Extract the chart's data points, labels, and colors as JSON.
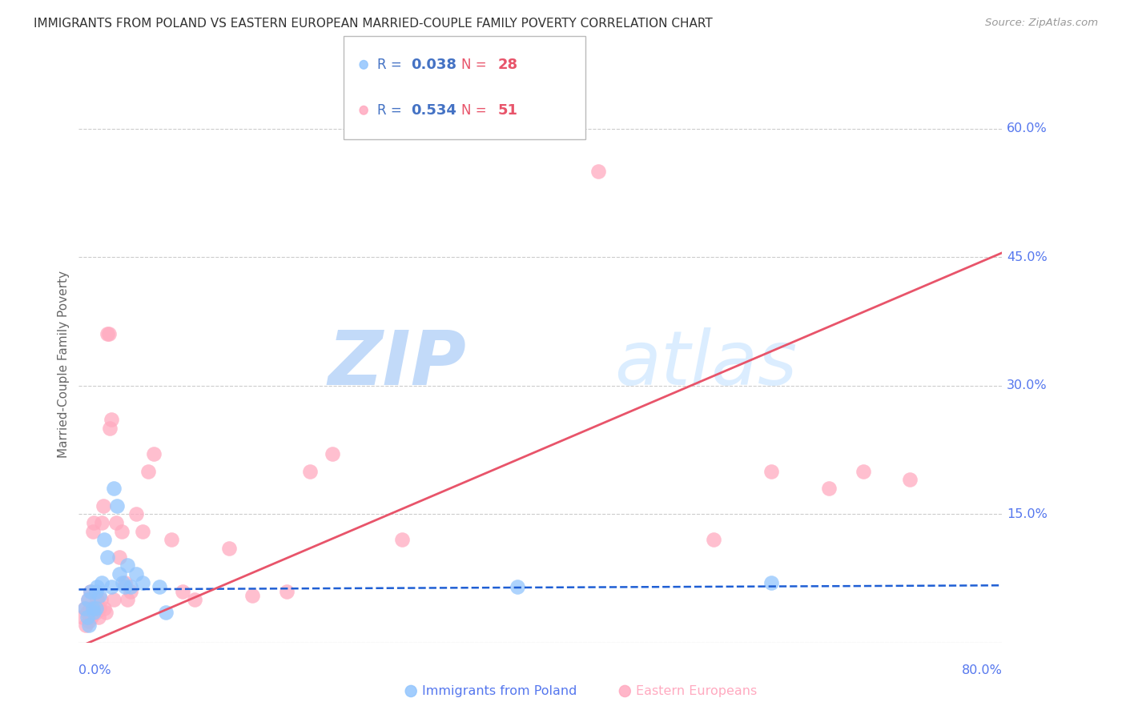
{
  "title": "IMMIGRANTS FROM POLAND VS EASTERN EUROPEAN MARRIED-COUPLE FAMILY POVERTY CORRELATION CHART",
  "source": "Source: ZipAtlas.com",
  "ylabel_label": "Married-Couple Family Poverty",
  "watermark_zip": "ZIP",
  "watermark_atlas": "atlas",
  "x_min": 0.0,
  "x_max": 0.8,
  "y_min": 0.0,
  "y_max": 0.65,
  "y_ticks": [
    0.0,
    0.15,
    0.3,
    0.45,
    0.6
  ],
  "y_tick_labels": [
    "",
    "15.0%",
    "30.0%",
    "45.0%",
    "60.0%"
  ],
  "poland_color": "#92C5FD",
  "eastern_color": "#FFAAC0",
  "poland_R": "0.038",
  "poland_N": "28",
  "eastern_R": "0.534",
  "eastern_N": "51",
  "legend_color_blue": "#4472C4",
  "legend_color_red": "#E8546A",
  "poland_scatter_x": [
    0.005,
    0.007,
    0.008,
    0.009,
    0.01,
    0.012,
    0.013,
    0.015,
    0.015,
    0.016,
    0.018,
    0.02,
    0.022,
    0.025,
    0.028,
    0.03,
    0.033,
    0.035,
    0.038,
    0.04,
    0.042,
    0.045,
    0.05,
    0.055,
    0.07,
    0.075,
    0.38,
    0.6
  ],
  "poland_scatter_y": [
    0.04,
    0.03,
    0.05,
    0.02,
    0.06,
    0.04,
    0.035,
    0.06,
    0.04,
    0.065,
    0.055,
    0.07,
    0.12,
    0.1,
    0.065,
    0.18,
    0.16,
    0.08,
    0.07,
    0.065,
    0.09,
    0.065,
    0.08,
    0.07,
    0.065,
    0.035,
    0.065,
    0.07
  ],
  "eastern_scatter_x": [
    0.003,
    0.005,
    0.006,
    0.007,
    0.008,
    0.009,
    0.01,
    0.01,
    0.011,
    0.012,
    0.013,
    0.014,
    0.015,
    0.016,
    0.017,
    0.018,
    0.019,
    0.02,
    0.021,
    0.022,
    0.023,
    0.025,
    0.026,
    0.027,
    0.028,
    0.03,
    0.032,
    0.035,
    0.037,
    0.04,
    0.042,
    0.045,
    0.05,
    0.055,
    0.06,
    0.065,
    0.08,
    0.09,
    0.1,
    0.13,
    0.15,
    0.18,
    0.2,
    0.22,
    0.28,
    0.45,
    0.55,
    0.6,
    0.65,
    0.68,
    0.72
  ],
  "eastern_scatter_y": [
    0.03,
    0.04,
    0.02,
    0.035,
    0.05,
    0.025,
    0.04,
    0.06,
    0.03,
    0.13,
    0.14,
    0.04,
    0.035,
    0.05,
    0.03,
    0.04,
    0.05,
    0.14,
    0.16,
    0.04,
    0.035,
    0.36,
    0.36,
    0.25,
    0.26,
    0.05,
    0.14,
    0.1,
    0.13,
    0.07,
    0.05,
    0.06,
    0.15,
    0.13,
    0.2,
    0.22,
    0.12,
    0.06,
    0.05,
    0.11,
    0.055,
    0.06,
    0.2,
    0.22,
    0.12,
    0.55,
    0.12,
    0.2,
    0.18,
    0.2,
    0.19
  ],
  "poland_line_color": "#1F5FD4",
  "eastern_line_color": "#E8546A",
  "poland_line_intercept": 0.062,
  "poland_line_slope": 0.006,
  "eastern_line_intercept": -0.005,
  "eastern_line_slope": 0.575,
  "background_color": "#FFFFFF",
  "grid_color": "#CCCCCC",
  "tick_color": "#5577EE",
  "ylabel_color": "#666666",
  "title_color": "#333333",
  "source_color": "#999999"
}
